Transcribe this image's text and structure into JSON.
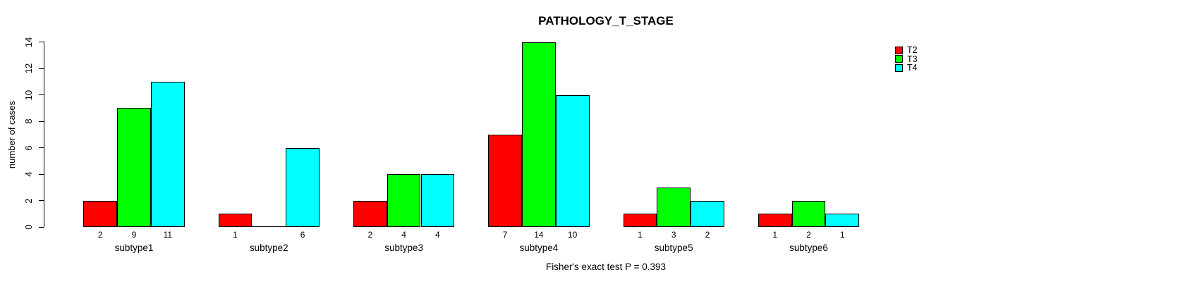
{
  "chart_data": {
    "type": "bar",
    "title": "PATHOLOGY_T_STAGE",
    "ylabel": "number of cases",
    "xlabel": "",
    "annotation": "Fisher's exact test P = 0.393",
    "categories": [
      "subtype1",
      "subtype2",
      "subtype3",
      "subtype4",
      "subtype5",
      "subtype6"
    ],
    "series": [
      {
        "name": "T2",
        "color": "#FF0000",
        "values": [
          2,
          1,
          2,
          7,
          1,
          1
        ]
      },
      {
        "name": "T3",
        "color": "#00FF00",
        "values": [
          9,
          0,
          4,
          14,
          3,
          2
        ]
      },
      {
        "name": "T4",
        "color": "#00FFFF",
        "values": [
          11,
          6,
          4,
          10,
          2,
          1
        ]
      }
    ],
    "bar_value_labels": [
      [
        "2",
        "9",
        "11"
      ],
      [
        "1",
        "",
        "6"
      ],
      [
        "2",
        "4",
        "4"
      ],
      [
        "7",
        "14",
        "10"
      ],
      [
        "1",
        "3",
        "2"
      ],
      [
        "1",
        "2",
        "1"
      ]
    ],
    "ylim": [
      0,
      14
    ],
    "yticks": [
      "0",
      "2",
      "4",
      "6",
      "8",
      "10",
      "12",
      "14"
    ],
    "grid": false,
    "legend_position": "right",
    "bar_border_color": "#000000"
  }
}
